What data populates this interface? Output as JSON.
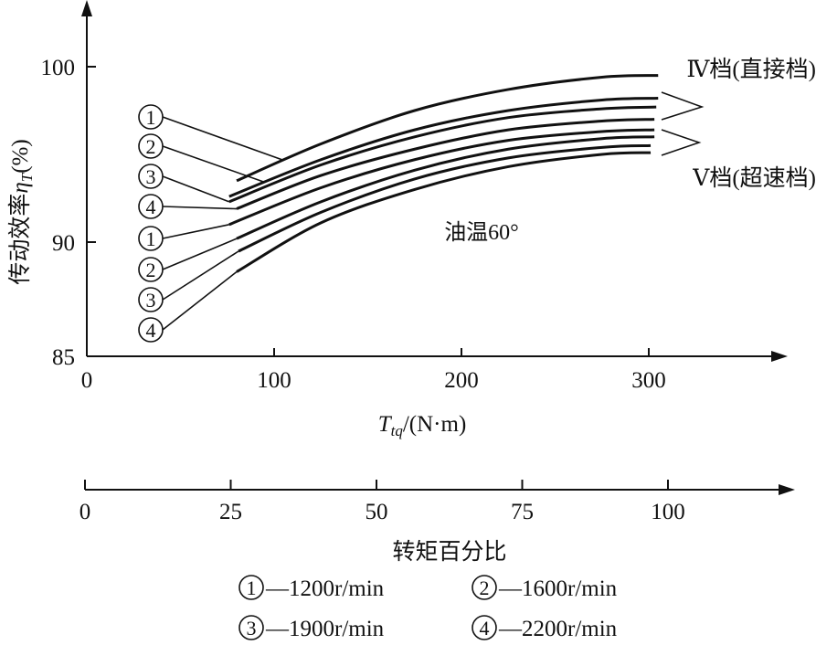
{
  "chart_data": {
    "type": "line",
    "title": "",
    "ylabel": "传动效率η_T(%)",
    "ylabel_parts": {
      "main": "传动效率",
      "symbol": "η",
      "sub": "T",
      "unit": "(%)"
    },
    "xlabel": "T_tq/(N·m)",
    "xlabel_parts": {
      "symbol": "T",
      "sub": "tq",
      "unit": "/(N·m)"
    },
    "x_ticks": [
      "0",
      "100",
      "200",
      "300"
    ],
    "x_tick_values": [
      0,
      100,
      200,
      300
    ],
    "y_ticks": [
      "85",
      "90",
      "100"
    ],
    "y_tick_values": [
      85,
      90,
      100
    ],
    "ylim": [
      85,
      100
    ],
    "xlim": [
      0,
      350
    ],
    "grid": false,
    "annotation": "油温60°",
    "group_labels": {
      "IV": "Ⅳ档(直接档)",
      "V": "Ⅴ档(超速档)"
    },
    "series": [
      {
        "name": "IV-1200",
        "gear": "IV",
        "label": "①",
        "points": [
          [
            80,
            93.5
          ],
          [
            125,
            95.6
          ],
          [
            175,
            97.5
          ],
          [
            225,
            98.7
          ],
          [
            275,
            99.4
          ],
          [
            305,
            99.5
          ]
        ]
      },
      {
        "name": "IV-1600",
        "gear": "IV",
        "label": "②",
        "points": [
          [
            76,
            92.6
          ],
          [
            125,
            94.7
          ],
          [
            175,
            96.4
          ],
          [
            225,
            97.5
          ],
          [
            275,
            98.1
          ],
          [
            305,
            98.2
          ]
        ]
      },
      {
        "name": "IV-1900",
        "gear": "IV",
        "label": "③",
        "points": [
          [
            76,
            92.3
          ],
          [
            125,
            94.4
          ],
          [
            175,
            96.0
          ],
          [
            225,
            97.1
          ],
          [
            275,
            97.6
          ],
          [
            304,
            97.7
          ]
        ]
      },
      {
        "name": "IV-2200",
        "gear": "IV",
        "label": "④",
        "points": [
          [
            80,
            91.9
          ],
          [
            125,
            93.8
          ],
          [
            175,
            95.3
          ],
          [
            225,
            96.4
          ],
          [
            275,
            96.9
          ],
          [
            303,
            97.0
          ]
        ]
      },
      {
        "name": "V-1200",
        "gear": "V",
        "label": "①",
        "points": [
          [
            76,
            91.0
          ],
          [
            125,
            93.1
          ],
          [
            175,
            94.7
          ],
          [
            225,
            95.8
          ],
          [
            275,
            96.3
          ],
          [
            303,
            96.4
          ]
        ]
      },
      {
        "name": "V-1600",
        "gear": "V",
        "label": "②",
        "points": [
          [
            80,
            90.2
          ],
          [
            125,
            92.3
          ],
          [
            175,
            94.1
          ],
          [
            225,
            95.3
          ],
          [
            275,
            95.9
          ],
          [
            303,
            96.0
          ]
        ]
      },
      {
        "name": "V-1900",
        "gear": "V",
        "label": "③",
        "points": [
          [
            81,
            89.6
          ],
          [
            125,
            91.7
          ],
          [
            175,
            93.6
          ],
          [
            225,
            94.8
          ],
          [
            275,
            95.4
          ],
          [
            301,
            95.5
          ]
        ]
      },
      {
        "name": "V-2200",
        "gear": "V",
        "label": "④",
        "points": [
          [
            80,
            88.7
          ],
          [
            125,
            91.1
          ],
          [
            175,
            93.0
          ],
          [
            225,
            94.3
          ],
          [
            275,
            95.0
          ],
          [
            301,
            95.1
          ]
        ]
      }
    ],
    "secondary_axis": {
      "label": "转矩百分比",
      "ticks": [
        "0",
        "25",
        "50",
        "75",
        "100"
      ],
      "tick_values": [
        0,
        25,
        50,
        75,
        100
      ]
    },
    "legend": [
      {
        "mark": "①",
        "text": "—1200r/min"
      },
      {
        "mark": "②",
        "text": "—1600r/min"
      },
      {
        "mark": "③",
        "text": "—1900r/min"
      },
      {
        "mark": "④",
        "text": "—2200r/min"
      }
    ]
  }
}
